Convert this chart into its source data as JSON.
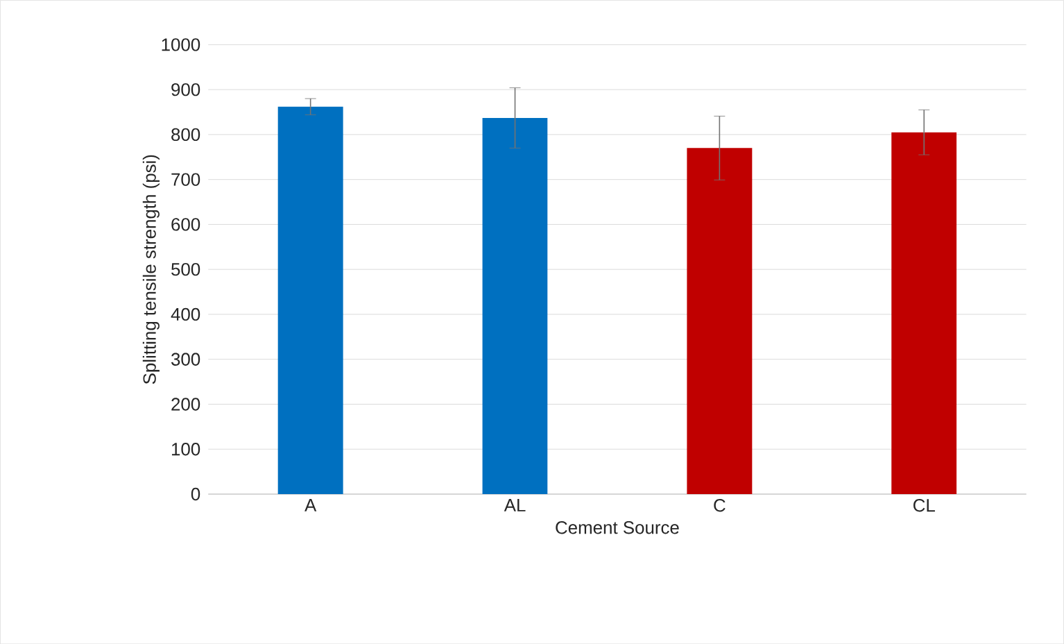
{
  "chart_data": {
    "type": "bar",
    "xlabel": "Cement Source",
    "ylabel": "Splitting tensile strength (psi)",
    "categories": [
      "A",
      "AL",
      "C",
      "CL"
    ],
    "values": [
      862,
      837,
      770,
      805
    ],
    "colors": [
      "#0070c0",
      "#0070c0",
      "#c00000",
      "#c00000"
    ],
    "errors": [
      18,
      67,
      71,
      50
    ],
    "ylim": [
      0,
      1000
    ],
    "yticks": [
      0,
      100,
      200,
      300,
      400,
      500,
      600,
      700,
      800,
      900,
      1000
    ],
    "grid": "y"
  }
}
